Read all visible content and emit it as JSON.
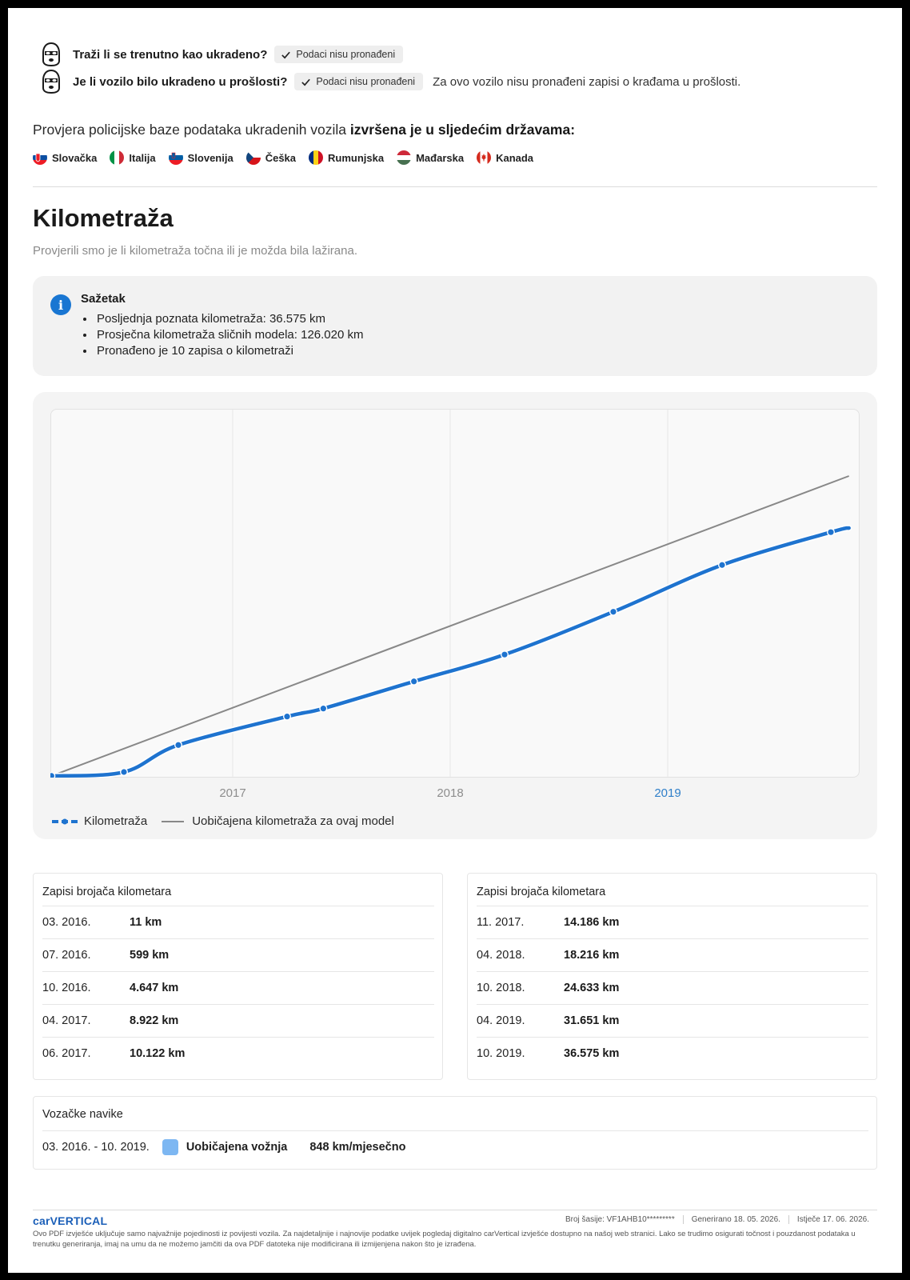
{
  "theft": {
    "current_question": "Traži li se trenutno kao ukradeno?",
    "current_status": "Podaci nisu pronađeni",
    "past_question": "Je li vozilo bilo ukradeno u prošlosti?",
    "past_status": "Podaci nisu pronađeni",
    "past_note": "Za ovo vozilo nisu pronađeni zapisi o krađama u prošlosti."
  },
  "countries": {
    "heading_prefix": "Provjera policijske baze podataka ukradenih vozila",
    "heading_bold": "izvršena je u sljedećim državama:",
    "items": [
      {
        "name": "Slovačka",
        "flag_icon": "slovakia-flag-icon"
      },
      {
        "name": "Italija",
        "flag_icon": "italy-flag-icon"
      },
      {
        "name": "Slovenija",
        "flag_icon": "slovenia-flag-icon"
      },
      {
        "name": "Češka",
        "flag_icon": "czech-flag-icon"
      },
      {
        "name": "Rumunjska",
        "flag_icon": "romania-flag-icon"
      },
      {
        "name": "Mađarska",
        "flag_icon": "hungary-flag-icon"
      },
      {
        "name": "Kanada",
        "flag_icon": "canada-flag-icon"
      }
    ]
  },
  "mileage": {
    "title": "Kilometraža",
    "subtitle": "Provjerili smo je li kilometraža točna ili je možda bila lažirana.",
    "summary_title": "Sažetak",
    "summary_items": [
      "Posljednja poznata kilometraža: 36.575 km",
      "Prosječna kilometraža sličnih modela: 126.020 km",
      "Pronađeno je 10 zapisa o kilometraži"
    ]
  },
  "chart_data": {
    "type": "line",
    "x_ticks": [
      "2017",
      "2018",
      "2019"
    ],
    "active_tick": "2019",
    "grid": true,
    "legend_position": "bottom-left",
    "series": [
      {
        "name": "Kilometraža",
        "color": "#1e73cf",
        "x": [
          "2016-02",
          "2016-03",
          "2016-07",
          "2016-10",
          "2017-04",
          "2017-06",
          "2017-11",
          "2018-04",
          "2018-10",
          "2019-04",
          "2019-10",
          "2019-11"
        ],
        "values": [
          11,
          11,
          599,
          4647,
          8922,
          10122,
          14186,
          18216,
          24633,
          31651,
          36575,
          37200
        ],
        "markers": [
          "2016-03",
          "2016-07",
          "2016-10",
          "2017-04",
          "2017-06",
          "2017-11",
          "2018-04",
          "2018-10",
          "2019-04",
          "2019-10"
        ]
      },
      {
        "name": "Uobičajena kilometraža za ovaj model",
        "color": "#888888",
        "x": [
          "2016-03",
          "2019-11"
        ],
        "values": [
          11,
          45000
        ]
      }
    ]
  },
  "tables": [
    {
      "title": "Zapisi brojača kilometara",
      "rows": [
        {
          "date": "03. 2016.",
          "value": "11 km"
        },
        {
          "date": "07. 2016.",
          "value": "599 km"
        },
        {
          "date": "10. 2016.",
          "value": "4.647 km"
        },
        {
          "date": "04. 2017.",
          "value": "8.922 km"
        },
        {
          "date": "06. 2017.",
          "value": "10.122 km"
        }
      ]
    },
    {
      "title": "Zapisi brojača kilometara",
      "rows": [
        {
          "date": "11. 2017.",
          "value": "14.186 km"
        },
        {
          "date": "04. 2018.",
          "value": "18.216 km"
        },
        {
          "date": "10. 2018.",
          "value": "24.633 km"
        },
        {
          "date": "04. 2019.",
          "value": "31.651 km"
        },
        {
          "date": "10. 2019.",
          "value": "36.575 km"
        }
      ]
    }
  ],
  "habits": {
    "title": "Vozačke navike",
    "period": "03. 2016. - 10. 2019.",
    "type": "Uobičajena vožnja",
    "rate": "848 km/mjesečno",
    "swatch_color": "#7db7f2"
  },
  "footer": {
    "logo": "carVERTICAL",
    "vin": "Broj šasije:  VF1AHB10*********",
    "generated": "Generirano  18. 05. 2026.",
    "expires": "Istječe  17. 06. 2026.",
    "disclaimer": "Ovo PDF izvješće uključuje samo najvažnije pojedinosti iz povijesti vozila. Za najdetaljnije i najnovije podatke uvijek pogledaj digitalno carVertical izvješće dostupno na našoj web stranici. Lako se trudimo osigurati točnost i pouzdanost podataka u trenutku generiranja, imaj na umu da ne možemo jamčiti da ova PDF datoteka nije modificirana ili izmijenjena nakon što je izrađena."
  }
}
